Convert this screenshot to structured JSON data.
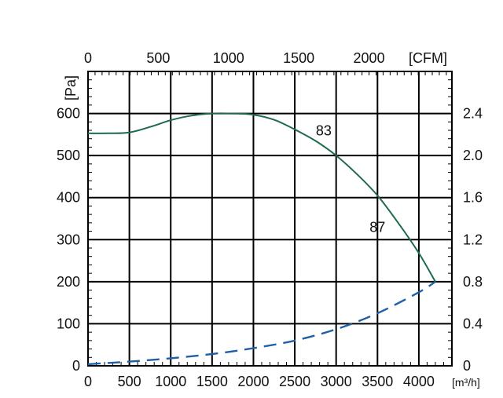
{
  "chart_data": {
    "type": "line",
    "x_bottom": {
      "label": "[m³/h]",
      "lim": [
        0,
        4400
      ],
      "ticks": [
        0,
        500,
        1000,
        1500,
        2000,
        2500,
        3000,
        3500,
        4000
      ],
      "tick_labels": [
        "0",
        "500",
        "1000",
        "1500",
        "2000",
        "2500",
        "3000",
        "3500",
        "4000"
      ]
    },
    "x_top": {
      "label": "[CFM]",
      "ticks": [
        0,
        500,
        1000,
        1500,
        2000
      ],
      "tick_labels": [
        "0",
        "500",
        "1000",
        "1500",
        "2000"
      ]
    },
    "y_left": {
      "label": "[Pa]",
      "lim": [
        0,
        700
      ],
      "ticks": [
        0,
        100,
        200,
        300,
        400,
        500,
        600
      ],
      "tick_labels": [
        "0",
        "100",
        "200",
        "300",
        "400",
        "500",
        "600"
      ]
    },
    "y_right": {
      "label": "",
      "ticks": [
        0,
        0.4,
        0.8,
        1.2,
        1.6,
        2.0,
        2.4
      ],
      "tick_labels": [
        "0",
        "0.4",
        "0.8",
        "1.2",
        "1.6",
        "2.0",
        "2.4"
      ]
    },
    "grid": true,
    "series": [
      {
        "style": "solid",
        "color": "#1f6b4a",
        "x": [
          0,
          250,
          500,
          750,
          1000,
          1250,
          1500,
          1750,
          2000,
          2250,
          2500,
          2750,
          3000,
          3250,
          3500,
          3750,
          4000,
          4200
        ],
        "y": [
          553,
          553,
          555,
          568,
          584,
          595,
          600,
          600,
          597,
          585,
          562,
          535,
          500,
          456,
          405,
          340,
          268,
          200
        ]
      },
      {
        "style": "dashed",
        "color": "#1f5fa8",
        "x": [
          0,
          500,
          1000,
          1500,
          2000,
          2500,
          3000,
          3500,
          4000,
          4200
        ],
        "y": [
          4,
          10,
          18,
          28,
          42,
          60,
          87,
          125,
          175,
          200
        ]
      }
    ],
    "annotations": [
      {
        "text": "83",
        "x": 2850,
        "y": 548
      },
      {
        "text": "87",
        "x": 3500,
        "y": 318
      }
    ]
  }
}
